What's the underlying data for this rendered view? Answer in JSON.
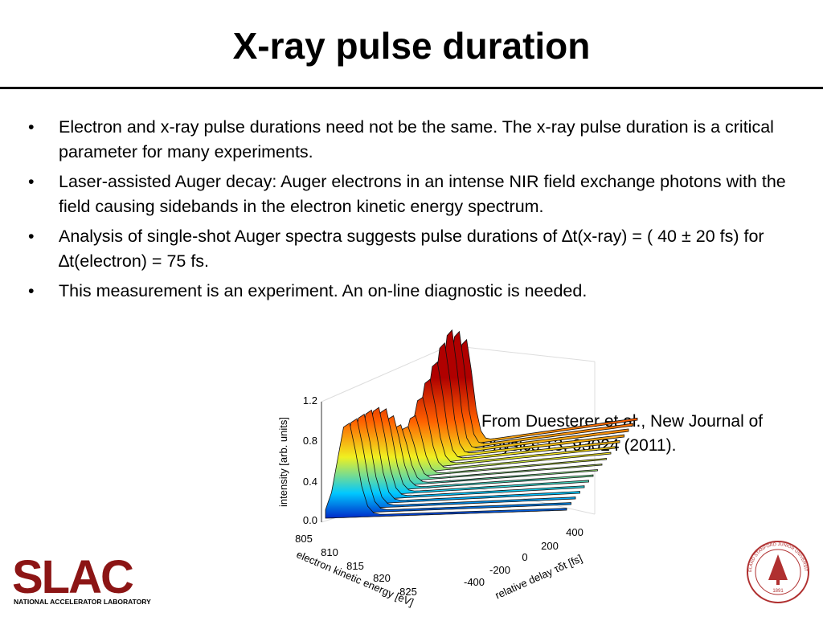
{
  "header": {
    "title": "X-ray pulse duration"
  },
  "bullets": [
    "Electron and x-ray pulse durations need not be the same. The x-ray pulse duration is a critical parameter for many experiments.",
    "Laser-assisted Auger decay: Auger electrons in an intense NIR field exchange photons with the field causing sidebands in the electron kinetic energy spectrum.",
    "Analysis of single-shot Auger spectra suggests pulse durations of ∆t(x-ray) = ( 40 ± 20 fs) for ∆t(electron) = 75 fs.",
    "This measurement is an experiment.  An on-line diagnostic is needed."
  ],
  "figure": {
    "y_label": "intensity [arb. units]",
    "y_ticks": [
      "0.0",
      "0.4",
      "0.8",
      "1.2"
    ],
    "x_label": "electron kinetic energy [eV]",
    "x_ticks": [
      "805",
      "810",
      "815",
      "820",
      "825"
    ],
    "z_label": "relative delay τδt [fs]",
    "z_ticks": [
      "-400",
      "-200",
      "0",
      "200",
      "400"
    ],
    "caption": "From Duesterer et al., New Journal of Physics 13, 93024 (2011)."
  },
  "logo": {
    "name": "SLAC",
    "subtitle": "NATIONAL ACCELERATOR LABORATORY"
  },
  "seal": {
    "name": "LELAND STANFORD JUNIOR UNIVERSITY",
    "year": "1891"
  }
}
